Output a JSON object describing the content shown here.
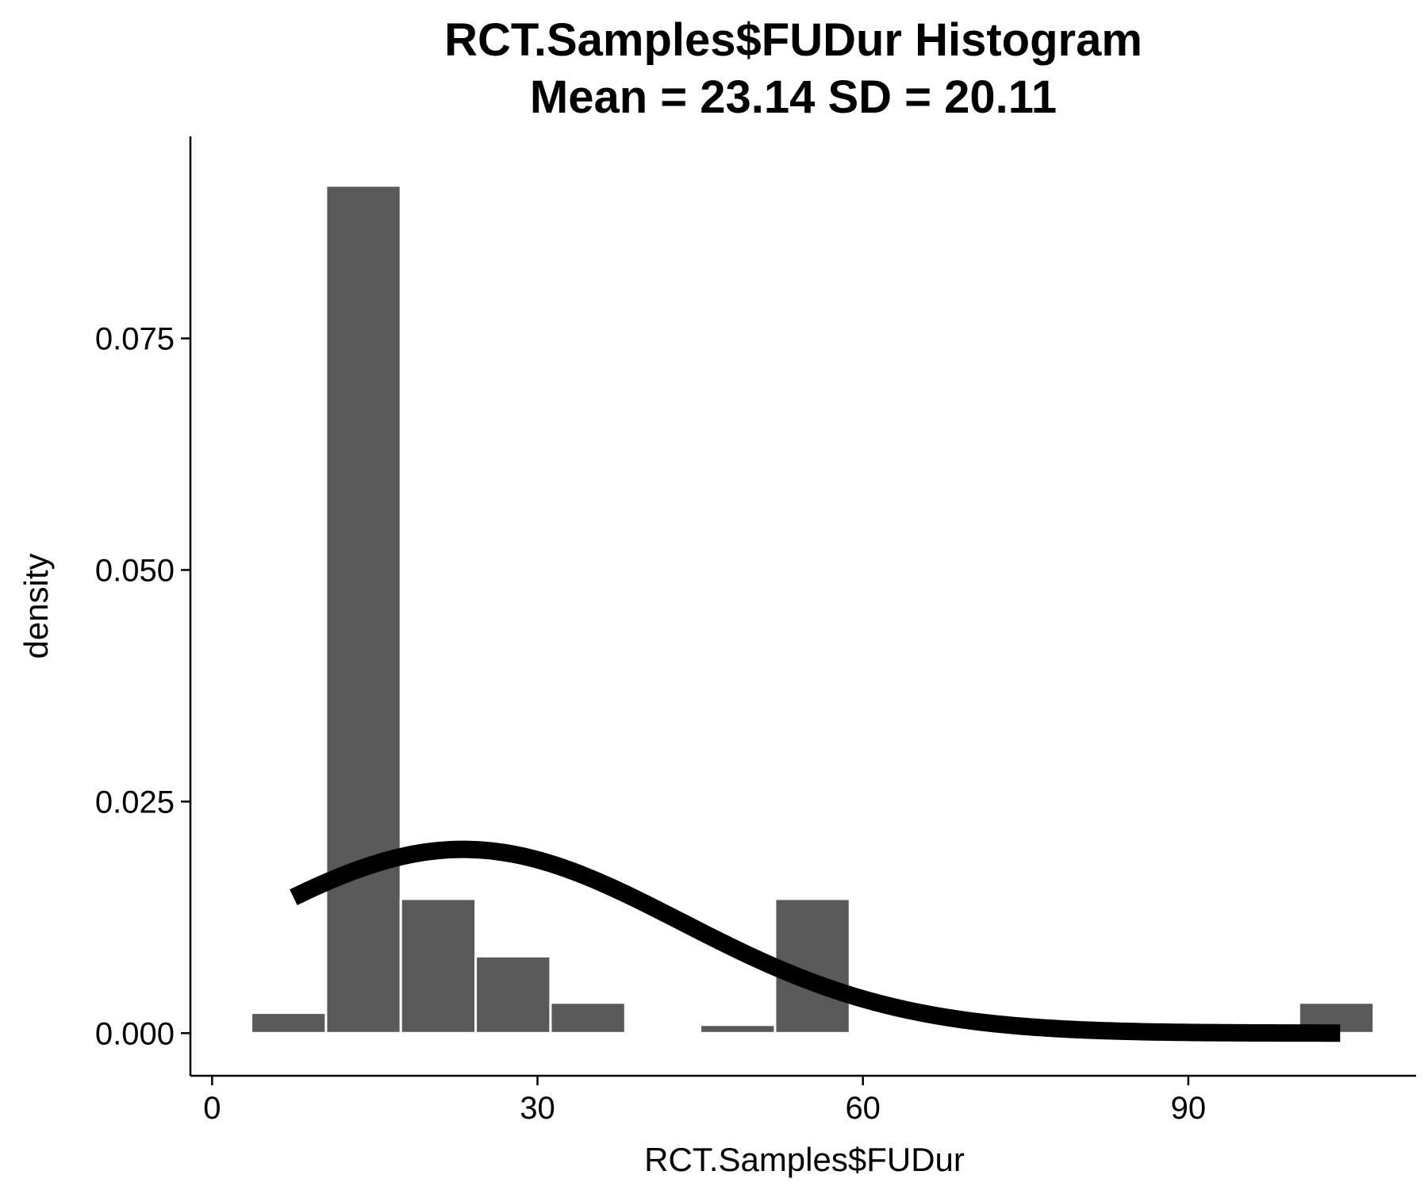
{
  "chart_data": {
    "type": "bar",
    "title": "RCT.Samples$FUDur Histogram",
    "subtitle": "Mean = 23.14 SD = 20.11",
    "xlabel": "RCT.Samples$FUDur",
    "ylabel": "density",
    "xlim": [
      -2,
      111
    ],
    "ylim": [
      -0.0046,
      0.0968
    ],
    "x_ticks": [
      0,
      30,
      60,
      90
    ],
    "x_tick_labels": [
      "0",
      "30",
      "60",
      "90"
    ],
    "y_ticks": [
      0.0,
      0.025,
      0.05,
      0.075
    ],
    "y_tick_labels": [
      "0.000",
      "0.025",
      "0.050",
      "0.075"
    ],
    "bins": [
      {
        "x0": 3.6,
        "x1": 10.5,
        "density": 0.0022
      },
      {
        "x0": 10.5,
        "x1": 17.4,
        "density": 0.0915
      },
      {
        "x0": 17.4,
        "x1": 24.3,
        "density": 0.0145
      },
      {
        "x0": 24.3,
        "x1": 31.2,
        "density": 0.0083
      },
      {
        "x0": 31.2,
        "x1": 38.1,
        "density": 0.0033
      },
      {
        "x0": 38.1,
        "x1": 45.0,
        "density": 0.0
      },
      {
        "x0": 45.0,
        "x1": 51.9,
        "density": 0.0009
      },
      {
        "x0": 51.9,
        "x1": 58.8,
        "density": 0.0145
      },
      {
        "x0": 58.8,
        "x1": 65.7,
        "density": 0.0
      },
      {
        "x0": 65.7,
        "x1": 72.6,
        "density": 0.0002
      },
      {
        "x0": 72.6,
        "x1": 79.5,
        "density": 0.0
      },
      {
        "x0": 79.5,
        "x1": 86.4,
        "density": 0.0
      },
      {
        "x0": 86.4,
        "x1": 93.3,
        "density": 0.0
      },
      {
        "x0": 93.3,
        "x1": 100.2,
        "density": 0.0
      },
      {
        "x0": 100.2,
        "x1": 107.1,
        "density": 0.0033
      }
    ],
    "normal_curve": {
      "mean": 23.14,
      "sd": 20.11,
      "x_range": [
        7.5,
        104
      ]
    },
    "colors": {
      "bar": "#595959",
      "bar_outline": "#ffffff",
      "curve": "#000000",
      "axis": "#000000"
    },
    "grid": false,
    "legend": false
  }
}
